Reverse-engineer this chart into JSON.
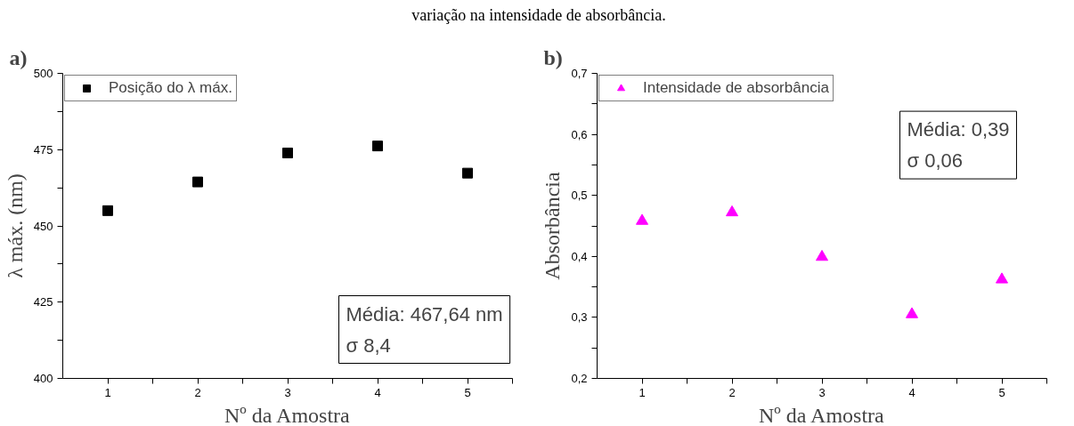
{
  "chart_data": [
    {
      "type": "scatter",
      "title": "variação na intensidade de absorbância.",
      "xlabel": "Nº da Amostra",
      "ylabel": "λ máx. (nm)",
      "annotations": [
        "a)",
        "Média: 467,64 nm\nσ 8,4"
      ],
      "x": [
        1,
        2,
        3,
        4,
        5
      ],
      "series": [
        {
          "name": "Posição do λ máx.",
          "color": "#000000",
          "values": [
            455.0,
            464.4,
            473.9,
            476.2,
            467.3
          ]
        }
      ],
      "marker": "square",
      "legend": "top left",
      "grid": false,
      "xlim": [
        0.5,
        5.5
      ],
      "xticks": [
        1,
        {
          "value": 1.5,
          "label": null
        },
        2,
        {
          "value": 2.5,
          "label": null
        },
        3,
        {
          "value": 3.5,
          "label": null
        },
        4,
        {
          "value": 4.5,
          "label": null
        },
        5,
        {
          "value": 5.5,
          "label": null
        }
      ],
      "ylim": [
        400,
        500
      ],
      "yticks": [
        400,
        {
          "value": 412.5,
          "label": null
        },
        425,
        {
          "value": 437.5,
          "label": null
        },
        450,
        {
          "value": 462.5,
          "label": null
        },
        475,
        {
          "value": 487.5,
          "label": null
        },
        500
      ]
    },
    {
      "type": "scatter",
      "xlabel": "Nº da Amostra",
      "ylabel": "Absorbância",
      "annotations": [
        "b)",
        "Média: 0,39\nσ 0,06"
      ],
      "x": [
        1,
        2,
        3,
        4,
        5
      ],
      "series": [
        {
          "name": "Intensidade de absorbância",
          "color": "#ff00ff",
          "values": [
            0.458,
            0.472,
            0.399,
            0.305,
            0.362
          ]
        }
      ],
      "marker": "triangle",
      "legend": "top left",
      "grid": false,
      "xlim": [
        0.5,
        5.5
      ],
      "xticks": [
        1,
        {
          "value": 1.5,
          "label": null
        },
        2,
        {
          "value": 2.5,
          "label": null
        },
        3,
        {
          "value": 3.5,
          "label": null
        },
        4,
        {
          "value": 4.5,
          "label": null
        },
        5,
        {
          "value": 5.5,
          "label": null
        }
      ],
      "ylim": [
        0.2,
        0.7
      ],
      "yticks": [
        {
          "value": 0.2,
          "label": "0,2"
        },
        {
          "value": 0.25,
          "label": null
        },
        {
          "value": 0.3,
          "label": "0,3"
        },
        {
          "value": 0.35,
          "label": null
        },
        {
          "value": 0.4,
          "label": "0,4"
        },
        {
          "value": 0.45,
          "label": null
        },
        {
          "value": 0.5,
          "label": "0,5"
        },
        {
          "value": 0.55,
          "label": null
        },
        {
          "value": 0.6,
          "label": "0,6"
        },
        {
          "value": 0.65,
          "label": null
        },
        {
          "value": 0.7,
          "label": "0,7"
        }
      ]
    }
  ]
}
